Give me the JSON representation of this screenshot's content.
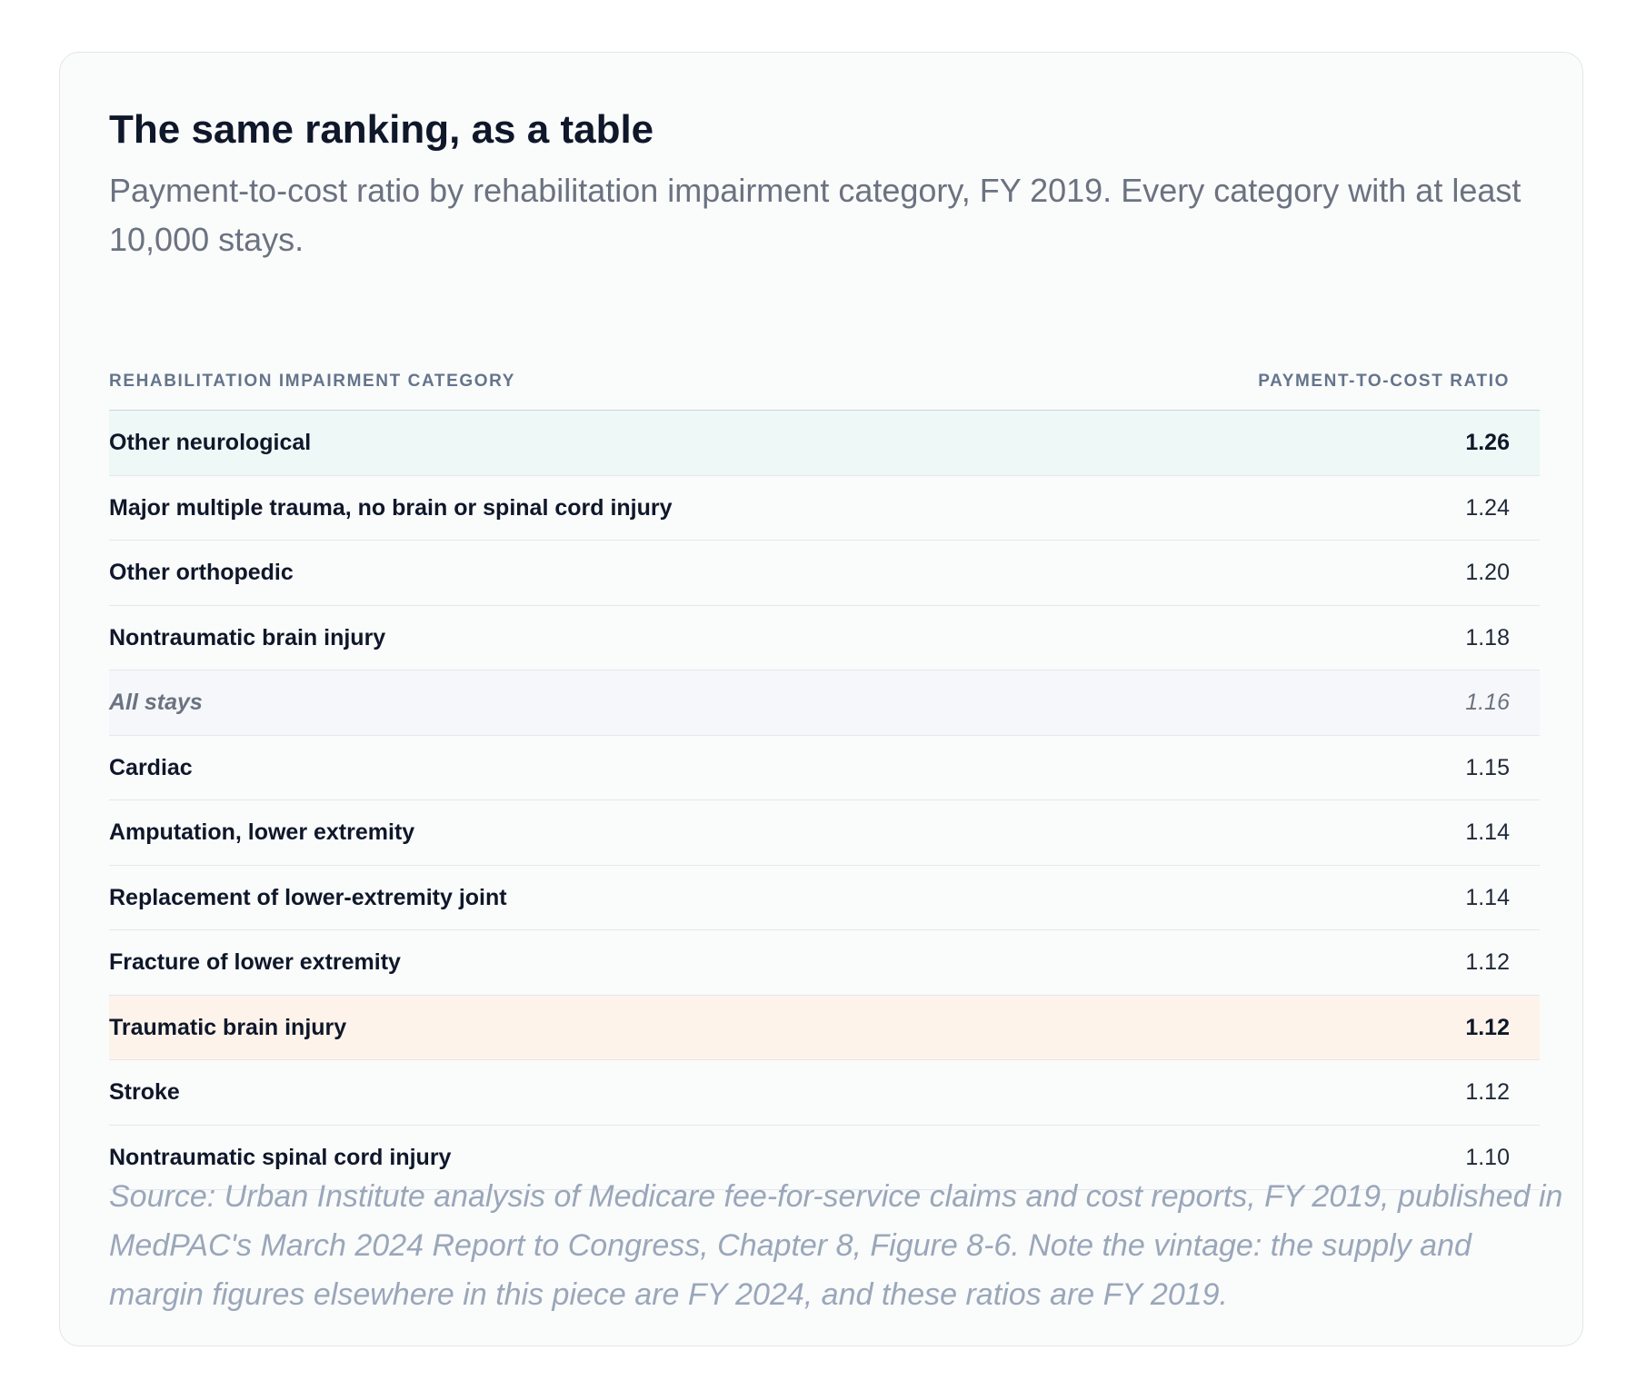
{
  "card": {
    "title": "The same ranking, as a table",
    "subtitle": "Payment-to-cost ratio by rehabilitation impairment category, FY 2019. Every category with at least 10,000 stays.",
    "source": "Source: Urban Institute analysis of Medicare fee-for-service claims and cost reports, FY 2019, published in MedPAC's March 2024 Report to Congress, Chapter 8, Figure 8-6. Note the vintage: the supply and margin figures elsewhere in this piece are FY 2024, and these ratios are FY 2019."
  },
  "chart_data": {
    "type": "table",
    "columns": [
      "Rehabilitation impairment category",
      "Payment-to-cost ratio"
    ],
    "rows": [
      {
        "category": "Other neurological",
        "value": "1.26"
      },
      {
        "category": "Major multiple trauma, no brain or spinal cord injury",
        "value": "1.24"
      },
      {
        "category": "Other orthopedic",
        "value": "1.20"
      },
      {
        "category": "Nontraumatic brain injury",
        "value": "1.18"
      },
      {
        "category": "All stays",
        "value": "1.16"
      },
      {
        "category": "Cardiac",
        "value": "1.15"
      },
      {
        "category": "Amputation, lower extremity",
        "value": "1.14"
      },
      {
        "category": "Replacement of lower-extremity joint",
        "value": "1.14"
      },
      {
        "category": "Fracture of lower extremity",
        "value": "1.12"
      },
      {
        "category": "Traumatic brain injury",
        "value": "1.12"
      },
      {
        "category": "Stroke",
        "value": "1.12"
      },
      {
        "category": "Nontraumatic spinal cord injury",
        "value": "1.10"
      }
    ],
    "highlight_colors": {
      "top": "#eef8f6",
      "average": "#f6f7fa",
      "traumatic_brain_injury": "#fdf3ea"
    }
  }
}
